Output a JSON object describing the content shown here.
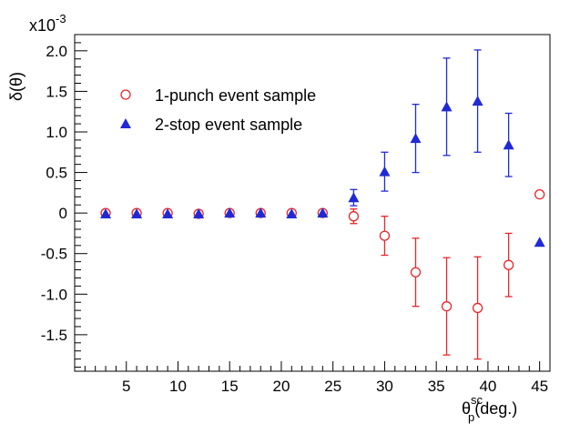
{
  "chart_data": {
    "type": "scatter",
    "ylabel": "δ(θ)",
    "y_multiplier": "x10",
    "y_multiplier_exp": "-3",
    "xlabel_main": "θ",
    "xlabel_sup": "sc",
    "xlabel_sub": "p",
    "xlabel_unit": "(deg.)",
    "xlim": [
      0,
      46
    ],
    "ylim": [
      -1.95,
      2.2
    ],
    "x_ticks": [
      {
        "value": 5,
        "label": "5"
      },
      {
        "value": 10,
        "label": "10"
      },
      {
        "value": 15,
        "label": "15"
      },
      {
        "value": 20,
        "label": "20"
      },
      {
        "value": 25,
        "label": "25"
      },
      {
        "value": 30,
        "label": "30"
      },
      {
        "value": 35,
        "label": "35"
      },
      {
        "value": 40,
        "label": "40"
      },
      {
        "value": 45,
        "label": "45"
      }
    ],
    "y_ticks": [
      {
        "value": 2.0,
        "label": "2.0"
      },
      {
        "value": 1.5,
        "label": "1.5"
      },
      {
        "value": 1.0,
        "label": "1.0"
      },
      {
        "value": 0.5,
        "label": "0.5"
      },
      {
        "value": 0,
        "label": "0"
      },
      {
        "value": -0.5,
        "label": "-0.5"
      },
      {
        "value": -1.0,
        "label": "-1.0"
      },
      {
        "value": -1.5,
        "label": "-1.5"
      }
    ],
    "legend_position": "upper-left",
    "series": [
      {
        "name": "1-punch event sample",
        "marker": "open-circle",
        "color": "#e8262a",
        "points": [
          {
            "x": 3,
            "y": 0.0,
            "err": 0.0
          },
          {
            "x": 6,
            "y": 0.0,
            "err": 0.0
          },
          {
            "x": 9,
            "y": 0.0,
            "err": 0.0
          },
          {
            "x": 12,
            "y": -0.01,
            "err": 0.0
          },
          {
            "x": 15,
            "y": 0.0,
            "err": 0.0
          },
          {
            "x": 18,
            "y": 0.0,
            "err": 0.0
          },
          {
            "x": 21,
            "y": 0.0,
            "err": 0.0
          },
          {
            "x": 24,
            "y": 0.0,
            "err": 0.04
          },
          {
            "x": 27,
            "y": -0.04,
            "err": 0.09
          },
          {
            "x": 30,
            "y": -0.28,
            "err": 0.24
          },
          {
            "x": 33,
            "y": -0.73,
            "err": 0.42
          },
          {
            "x": 36,
            "y": -1.15,
            "err": 0.6
          },
          {
            "x": 39,
            "y": -1.17,
            "err": 0.63
          },
          {
            "x": 42,
            "y": -0.64,
            "err": 0.39
          },
          {
            "x": 45,
            "y": 0.23,
            "err": 0.0
          }
        ]
      },
      {
        "name": "2-stop event sample",
        "marker": "filled-triangle",
        "color": "#1f2ad6",
        "points": [
          {
            "x": 3,
            "y": -0.01,
            "err": 0.0
          },
          {
            "x": 6,
            "y": -0.01,
            "err": 0.0
          },
          {
            "x": 9,
            "y": -0.01,
            "err": 0.0
          },
          {
            "x": 12,
            "y": -0.01,
            "err": 0.0
          },
          {
            "x": 15,
            "y": 0.0,
            "err": 0.0
          },
          {
            "x": 18,
            "y": 0.0,
            "err": 0.0
          },
          {
            "x": 21,
            "y": -0.01,
            "err": 0.0
          },
          {
            "x": 24,
            "y": 0.0,
            "err": 0.0
          },
          {
            "x": 27,
            "y": 0.19,
            "err": 0.1
          },
          {
            "x": 30,
            "y": 0.51,
            "err": 0.24
          },
          {
            "x": 33,
            "y": 0.92,
            "err": 0.42
          },
          {
            "x": 36,
            "y": 1.31,
            "err": 0.6
          },
          {
            "x": 39,
            "y": 1.38,
            "err": 0.63
          },
          {
            "x": 42,
            "y": 0.84,
            "err": 0.39
          },
          {
            "x": 45,
            "y": -0.36,
            "err": 0.0
          }
        ]
      }
    ]
  }
}
